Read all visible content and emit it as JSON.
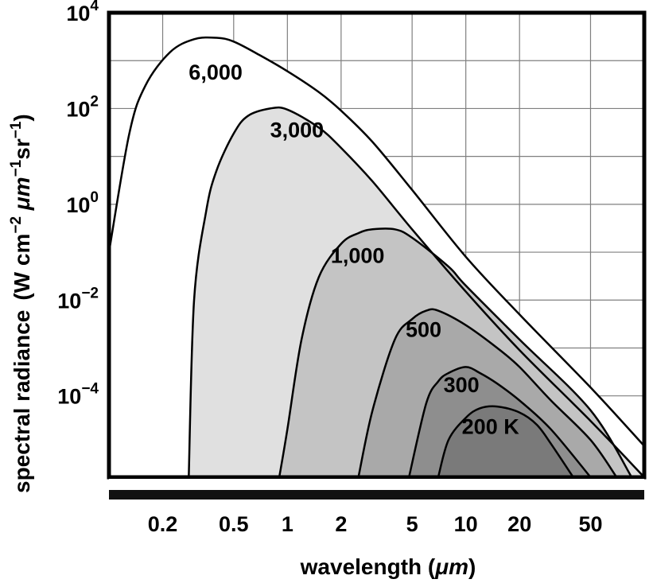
{
  "chart_data": {
    "type": "area",
    "title": "",
    "xlabel_prefix": "wavelength (",
    "xlabel_unit": "μm",
    "xlabel_suffix": ")",
    "ylabel_prefix": "spectral radiance",
    "ylabel_unit_parts": [
      "(W cm",
      "−2",
      " ",
      "μm",
      "−1",
      "sr",
      "−1",
      ")"
    ],
    "xscale": "log",
    "yscale": "log",
    "xlim": [
      0.1,
      100
    ],
    "ylim": [
      2e-06,
      10000
    ],
    "x_ticks": [
      0.2,
      0.5,
      1,
      2,
      5,
      10,
      20,
      50
    ],
    "x_tick_labels": [
      "0.2",
      "0.5",
      "1",
      "2",
      "5",
      "10",
      "20",
      "50"
    ],
    "y_ticks": [
      {
        "value": 10000,
        "base": "10",
        "exp": "4"
      },
      {
        "value": 100,
        "base": "10",
        "exp": "2"
      },
      {
        "value": 1,
        "base": "10",
        "exp": "0"
      },
      {
        "value": 0.01,
        "base": "10",
        "exp": "−2"
      },
      {
        "value": 0.0001,
        "base": "10",
        "exp": "−4"
      }
    ],
    "grid": true,
    "series": [
      {
        "name": "6,000",
        "label": "6,000",
        "fill": "#ffffff",
        "label_at": [
          0.28,
          400
        ],
        "points": [
          [
            0.1,
            0.1
          ],
          [
            0.13,
            30
          ],
          [
            0.16,
            300
          ],
          [
            0.22,
            1500
          ],
          [
            0.3,
            2800
          ],
          [
            0.4,
            3000
          ],
          [
            0.5,
            2500
          ],
          [
            0.7,
            1300
          ],
          [
            1,
            600
          ],
          [
            1.5,
            220
          ],
          [
            2,
            90
          ],
          [
            3,
            20
          ],
          [
            5,
            2
          ],
          [
            10,
            0.08
          ],
          [
            20,
            0.005
          ],
          [
            50,
            0.00015
          ],
          [
            100,
            9e-06
          ]
        ]
      },
      {
        "name": "3,000",
        "label": "3,000",
        "fill": "#e0e0e0",
        "label_at": [
          0.8,
          25
        ],
        "points": [
          [
            0.28,
            2e-06
          ],
          [
            0.3,
            0.01
          ],
          [
            0.35,
            0.7
          ],
          [
            0.4,
            5
          ],
          [
            0.5,
            30
          ],
          [
            0.6,
            70
          ],
          [
            0.8,
            100
          ],
          [
            1,
            95
          ],
          [
            1.5,
            40
          ],
          [
            2,
            15
          ],
          [
            3,
            3
          ],
          [
            5,
            0.3
          ],
          [
            10,
            0.015
          ],
          [
            20,
            0.0009
          ],
          [
            50,
            3e-05
          ],
          [
            100,
            2e-06
          ]
        ]
      },
      {
        "name": "1,000",
        "label": "1,000",
        "fill": "#c4c4c4",
        "label_at": [
          1.75,
          0.06
        ],
        "points": [
          [
            0.9,
            2e-06
          ],
          [
            1,
            2e-05
          ],
          [
            1.2,
            0.0015
          ],
          [
            1.5,
            0.03
          ],
          [
            2,
            0.15
          ],
          [
            2.5,
            0.25
          ],
          [
            3,
            0.3
          ],
          [
            4,
            0.3
          ],
          [
            5,
            0.2
          ],
          [
            8,
            0.05
          ],
          [
            10,
            0.02
          ],
          [
            20,
            0.0015
          ],
          [
            50,
            5e-05
          ],
          [
            85,
            2e-06
          ]
        ]
      },
      {
        "name": "500",
        "label": "500",
        "fill": "#a9a9a9",
        "label_at": [
          4.6,
          0.0017
        ],
        "points": [
          [
            2.5,
            2e-06
          ],
          [
            3,
            5e-05
          ],
          [
            4,
            0.0015
          ],
          [
            5,
            0.004
          ],
          [
            6,
            0.006
          ],
          [
            7,
            0.006
          ],
          [
            10,
            0.003
          ],
          [
            15,
            0.001
          ],
          [
            20,
            0.0004
          ],
          [
            30,
            8e-05
          ],
          [
            50,
            1.2e-05
          ],
          [
            70,
            2e-06
          ]
        ]
      },
      {
        "name": "300",
        "label": "300",
        "fill": "#8e8e8e",
        "label_at": [
          7.5,
          0.00012
        ],
        "points": [
          [
            4.8,
            2e-06
          ],
          [
            6,
            7e-05
          ],
          [
            7,
            0.0002
          ],
          [
            8,
            0.0003
          ],
          [
            10,
            0.0004
          ],
          [
            12,
            0.0003
          ],
          [
            15,
            0.00018
          ],
          [
            20,
            8e-05
          ],
          [
            30,
            2e-05
          ],
          [
            50,
            2e-06
          ]
        ]
      },
      {
        "name": "200 K",
        "label": "200 K",
        "fill": "#7a7a7a",
        "label_at": [
          9.5,
          1.6e-05
        ],
        "points": [
          [
            7,
            2e-06
          ],
          [
            8,
            1.2e-05
          ],
          [
            10,
            3.5e-05
          ],
          [
            12,
            5.5e-05
          ],
          [
            15,
            6e-05
          ],
          [
            20,
            4.5e-05
          ],
          [
            25,
            2.5e-05
          ],
          [
            30,
            1e-05
          ],
          [
            40,
            2e-06
          ]
        ]
      }
    ]
  }
}
